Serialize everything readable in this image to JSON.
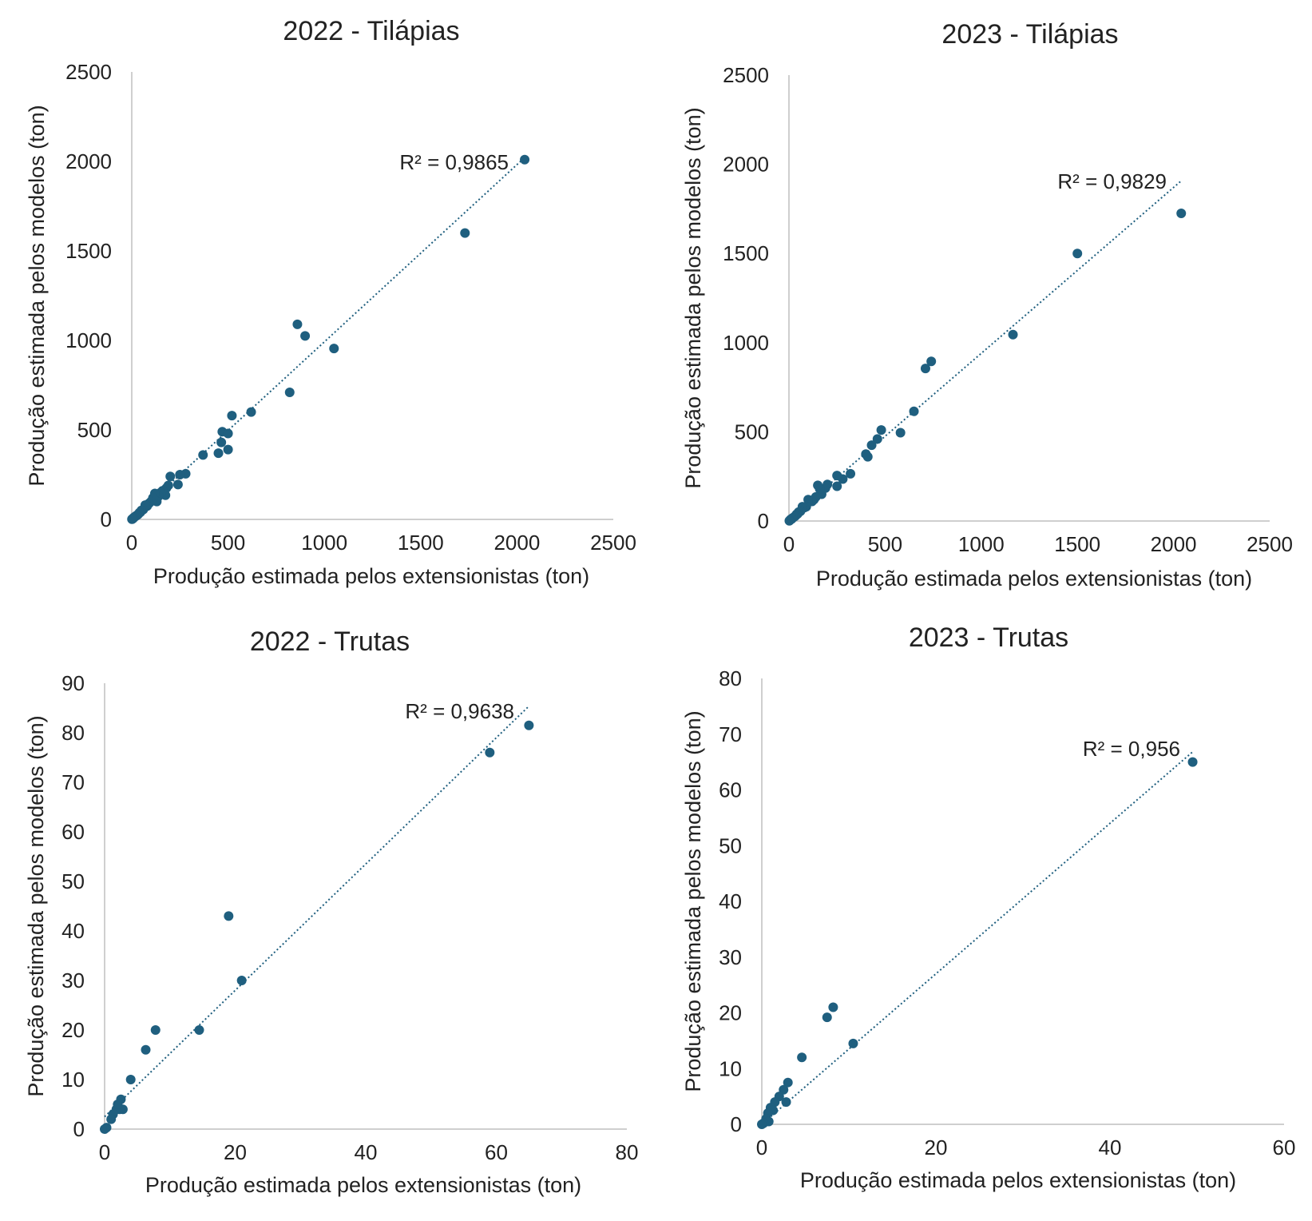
{
  "colors": {
    "marker": "#1f5f7f",
    "trendline": "#1f5f7f",
    "axis": "#bfbfbf",
    "text": "#222222"
  },
  "chart_data": [
    {
      "type": "scatter",
      "title": "2022 - Tilápias",
      "xlabel": "Produção estimada pelos extensionistas (ton)",
      "ylabel": "Produção estimada pelos modelos (ton)",
      "xlim": [
        0,
        2500
      ],
      "ylim": [
        0,
        2500
      ],
      "xticks": [
        "0",
        "500",
        "1000",
        "1500",
        "2000",
        "2500"
      ],
      "yticks": [
        "0",
        "500",
        "1000",
        "1500",
        "2000",
        "2500"
      ],
      "grid": false,
      "legend": "none",
      "trendline": {
        "type": "linear",
        "slope": 0.99,
        "intercept": 2,
        "x_range": [
          0,
          2040
        ]
      },
      "r2_label": "R² = 0,9865",
      "points": [
        [
          2040,
          2010
        ],
        [
          1730,
          1600
        ],
        [
          860,
          1090
        ],
        [
          900,
          1025
        ],
        [
          1050,
          955
        ],
        [
          820,
          710
        ],
        [
          520,
          580
        ],
        [
          620,
          600
        ],
        [
          470,
          490
        ],
        [
          500,
          480
        ],
        [
          465,
          430
        ],
        [
          450,
          370
        ],
        [
          500,
          390
        ],
        [
          370,
          360
        ],
        [
          280,
          255
        ],
        [
          250,
          250
        ],
        [
          240,
          195
        ],
        [
          200,
          240
        ],
        [
          190,
          190
        ],
        [
          180,
          175
        ],
        [
          175,
          135
        ],
        [
          160,
          160
        ],
        [
          150,
          150
        ],
        [
          140,
          130
        ],
        [
          120,
          145
        ],
        [
          130,
          100
        ],
        [
          110,
          120
        ],
        [
          100,
          100
        ],
        [
          90,
          90
        ],
        [
          80,
          75
        ],
        [
          70,
          80
        ],
        [
          60,
          55
        ],
        [
          50,
          50
        ],
        [
          45,
          40
        ],
        [
          40,
          38
        ],
        [
          35,
          30
        ],
        [
          30,
          25
        ],
        [
          25,
          22
        ],
        [
          20,
          18
        ],
        [
          15,
          14
        ],
        [
          10,
          10
        ],
        [
          8,
          6
        ],
        [
          5,
          4
        ],
        [
          3,
          2
        ],
        [
          1,
          1
        ]
      ]
    },
    {
      "type": "scatter",
      "title": "2023 - Tilápias",
      "xlabel": "Produção estimada pelos extensionistas (ton)",
      "ylabel": "Produção estimada pelos modelos (ton)",
      "xlim": [
        0,
        2500
      ],
      "ylim": [
        0,
        2500
      ],
      "xticks": [
        "0",
        "500",
        "1000",
        "1500",
        "2000",
        "2500"
      ],
      "yticks": [
        "0",
        "500",
        "1000",
        "1500",
        "2000",
        "2500"
      ],
      "grid": false,
      "legend": "none",
      "trendline": {
        "type": "linear",
        "slope": 0.93,
        "intercept": 10,
        "x_range": [
          0,
          2040
        ]
      },
      "r2_label": "R² = 0,9829",
      "points": [
        [
          2040,
          1725
        ],
        [
          1500,
          1500
        ],
        [
          1165,
          1045
        ],
        [
          740,
          895
        ],
        [
          710,
          855
        ],
        [
          650,
          615
        ],
        [
          580,
          495
        ],
        [
          480,
          510
        ],
        [
          460,
          460
        ],
        [
          430,
          425
        ],
        [
          400,
          375
        ],
        [
          410,
          360
        ],
        [
          320,
          265
        ],
        [
          280,
          235
        ],
        [
          250,
          255
        ],
        [
          250,
          195
        ],
        [
          200,
          205
        ],
        [
          190,
          185
        ],
        [
          170,
          150
        ],
        [
          160,
          180
        ],
        [
          150,
          200
        ],
        [
          140,
          135
        ],
        [
          130,
          120
        ],
        [
          120,
          110
        ],
        [
          100,
          120
        ],
        [
          90,
          80
        ],
        [
          80,
          75
        ],
        [
          70,
          80
        ],
        [
          60,
          55
        ],
        [
          50,
          50
        ],
        [
          45,
          40
        ],
        [
          40,
          38
        ],
        [
          35,
          30
        ],
        [
          30,
          25
        ],
        [
          20,
          18
        ],
        [
          15,
          12
        ],
        [
          10,
          10
        ],
        [
          5,
          4
        ],
        [
          2,
          1
        ]
      ]
    },
    {
      "type": "scatter",
      "title": "2022 - Trutas",
      "xlabel": "Produção estimada pelos extensionistas (ton)",
      "ylabel": "Produção estimada pelos modelos (ton)",
      "xlim": [
        0,
        80
      ],
      "ylim": [
        0,
        90
      ],
      "xticks": [
        "0",
        "20",
        "40",
        "60",
        "80"
      ],
      "yticks": [
        "0",
        "10",
        "20",
        "30",
        "40",
        "50",
        "60",
        "70",
        "80",
        "90"
      ],
      "grid": false,
      "legend": "none",
      "trendline": {
        "type": "linear",
        "slope": 1.275,
        "intercept": 2.5,
        "x_range": [
          0,
          65
        ]
      },
      "r2_label": "R² = 0,9638",
      "points": [
        [
          65,
          81.5
        ],
        [
          59,
          76
        ],
        [
          19,
          43
        ],
        [
          21,
          30
        ],
        [
          14.5,
          20
        ],
        [
          7.8,
          20
        ],
        [
          6.3,
          16
        ],
        [
          4,
          10
        ],
        [
          2.5,
          6
        ],
        [
          2.8,
          4
        ],
        [
          2.3,
          4
        ],
        [
          1.8,
          4
        ],
        [
          2,
          5
        ],
        [
          1.3,
          3
        ],
        [
          1,
          2
        ],
        [
          0.3,
          0.3
        ],
        [
          0,
          0
        ]
      ]
    },
    {
      "type": "scatter",
      "title": "2023 - Trutas",
      "xlabel": "Produção estimada pelos extensionistas (ton)",
      "ylabel": "Produção estimada pelos modelos (ton)",
      "xlim": [
        0,
        60
      ],
      "ylim": [
        0,
        80
      ],
      "xticks": [
        "0",
        "20",
        "40",
        "60"
      ],
      "yticks": [
        "0",
        "10",
        "20",
        "30",
        "40",
        "50",
        "60",
        "70",
        "80"
      ],
      "grid": false,
      "legend": "none",
      "trendline": {
        "type": "linear",
        "slope": 1.35,
        "intercept": 0,
        "x_range": [
          0,
          49.5
        ]
      },
      "r2_label": "R² = 0,956",
      "points": [
        [
          49.5,
          65
        ],
        [
          10.5,
          14.5
        ],
        [
          8.2,
          21
        ],
        [
          7.5,
          19.2
        ],
        [
          4.6,
          12
        ],
        [
          3,
          7.5
        ],
        [
          2.5,
          6.2
        ],
        [
          2,
          5
        ],
        [
          1.5,
          4
        ],
        [
          2.8,
          4
        ],
        [
          1,
          3
        ],
        [
          1.3,
          2.5
        ],
        [
          0.7,
          2
        ],
        [
          0.5,
          1
        ],
        [
          0.8,
          0.5
        ],
        [
          0.2,
          0.2
        ],
        [
          0,
          0
        ]
      ]
    }
  ]
}
